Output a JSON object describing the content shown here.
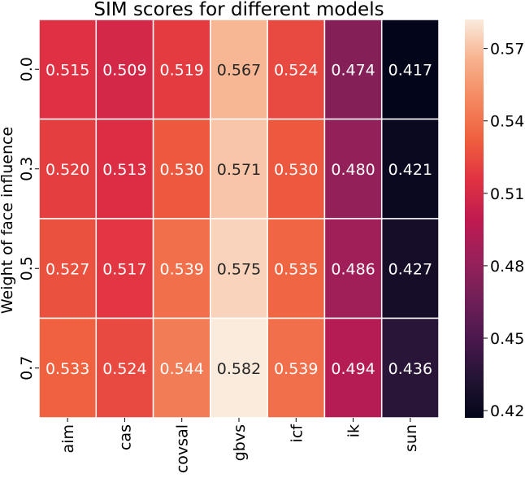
{
  "chart_data": {
    "type": "heatmap",
    "title": "SIM scores for different models",
    "xlabel": "",
    "ylabel": "Weight of face influence",
    "x_categories": [
      "aim",
      "cas",
      "covsal",
      "gbvs",
      "icf",
      "ik",
      "sun"
    ],
    "y_categories": [
      "0.0",
      "0.3",
      "0.5",
      "0.7"
    ],
    "values": [
      [
        0.515,
        0.509,
        0.519,
        0.567,
        0.524,
        0.474,
        0.417
      ],
      [
        0.52,
        0.513,
        0.53,
        0.571,
        0.53,
        0.48,
        0.421
      ],
      [
        0.527,
        0.517,
        0.539,
        0.575,
        0.535,
        0.486,
        0.427
      ],
      [
        0.533,
        0.524,
        0.544,
        0.582,
        0.539,
        0.494,
        0.436
      ]
    ],
    "value_labels": [
      [
        "0.515",
        "0.509",
        "0.519",
        "0.567",
        "0.524",
        "0.474",
        "0.417"
      ],
      [
        "0.520",
        "0.513",
        "0.530",
        "0.571",
        "0.530",
        "0.480",
        "0.421"
      ],
      [
        "0.527",
        "0.517",
        "0.539",
        "0.575",
        "0.535",
        "0.486",
        "0.427"
      ],
      [
        "0.533",
        "0.524",
        "0.544",
        "0.582",
        "0.539",
        "0.494",
        "0.436"
      ]
    ],
    "colorbar": {
      "vmin": 0.417,
      "vmax": 0.582,
      "ticks": [
        "0.42",
        "0.45",
        "0.48",
        "0.51",
        "0.54",
        "0.57"
      ],
      "colormap": "rocket"
    },
    "grid_lines": true,
    "grid_line_color": "#ffffff",
    "label_dark_text_color": "#262626",
    "label_light_text_color": "#ffffff"
  }
}
